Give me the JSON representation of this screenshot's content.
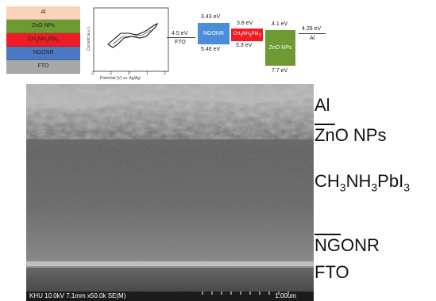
{
  "stack": {
    "layers": [
      {
        "name": "Al",
        "color": "#f9d4ba"
      },
      {
        "name": "ZnO NPs",
        "color": "#6e9a33"
      },
      {
        "name": "CH3NH3PbI3",
        "color": "#ee1c24"
      },
      {
        "name": "NGONR",
        "color": "#4a79c4"
      },
      {
        "name": "FTO",
        "color": "#a8a8a8"
      }
    ]
  },
  "cv_plot": {
    "ylabel": "Current (a.u.)",
    "xlabel": "Potential (V) vs. Ag/Ag⁺",
    "xticks": [
      "-2",
      "-1",
      "0",
      "1",
      "2"
    ]
  },
  "band": {
    "fto_level": "4.5 eV",
    "fto_label": "FTO",
    "ngonr_top": "3.43 eV",
    "ngonr_bottom": "5.46 eV",
    "ngonr_label": "NGONR",
    "ngonr_color": "#4a8edb",
    "perov_top": "3.8 eV",
    "perov_bottom": "5.3 eV",
    "perov_label": "CH3NH3PbI3",
    "perov_color": "#ee1c24",
    "zno_top": "4.1 eV",
    "zno_bottom": "7.7 eV",
    "zno_label": "ZnO NPs",
    "zno_color": "#6e9a33",
    "al_level": "4.28 eV",
    "al_label": "Al"
  },
  "sem": {
    "info": "KHU 10.0kV 7.1mm x50.0k SE(M)",
    "scale": "1.00um"
  },
  "labels": {
    "al": "Al",
    "zno_u": "Zn",
    "zno_rest": "O NPs",
    "perov_1": "CH",
    "perov_sub1": "3",
    "perov_2": "NH",
    "perov_sub2": "3",
    "perov_3": "PbI",
    "perov_sub3": "3",
    "ngonr_u": "NG",
    "ngonr_rest": "ONR",
    "fto": "FTO"
  }
}
